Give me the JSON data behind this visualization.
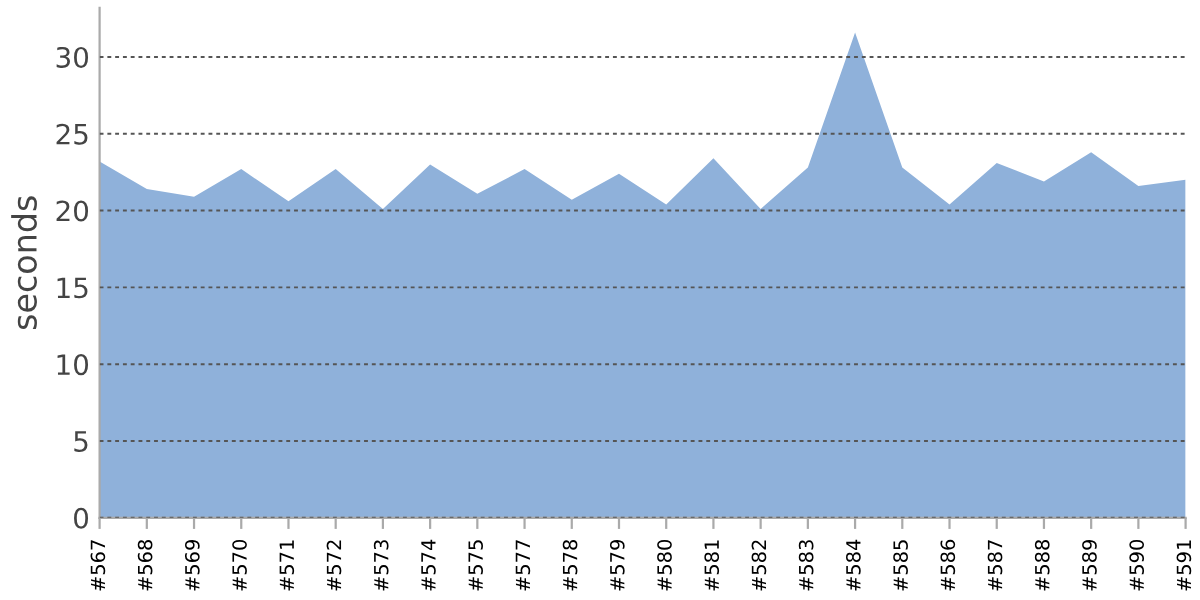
{
  "chart_data": {
    "type": "area",
    "ylabel": "seconds",
    "categories": [
      "#567",
      "#568",
      "#569",
      "#570",
      "#571",
      "#572",
      "#573",
      "#574",
      "#575",
      "#577",
      "#578",
      "#579",
      "#580",
      "#581",
      "#582",
      "#583",
      "#584",
      "#585",
      "#586",
      "#587",
      "#588",
      "#589",
      "#590",
      "#591"
    ],
    "series": [
      {
        "color": "#8fb1da",
        "values": [
          23.2,
          21.4,
          20.9,
          22.7,
          20.6,
          22.7,
          20.1,
          23.0,
          21.1,
          22.7,
          20.7,
          22.4,
          20.4,
          23.4,
          20.1,
          22.8,
          31.6,
          22.8,
          20.4,
          23.1,
          21.9,
          23.8,
          21.6,
          22.0
        ]
      }
    ],
    "ylim": [
      0,
      33.2
    ],
    "yticks": [
      0,
      5,
      10,
      15,
      20,
      25,
      30
    ],
    "grid": "y",
    "legend": false
  }
}
